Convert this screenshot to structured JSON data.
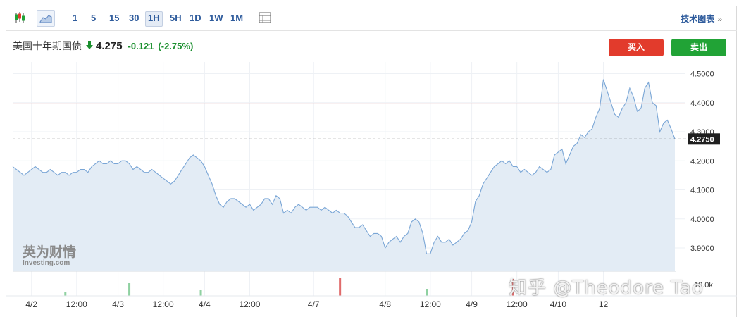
{
  "toolbar": {
    "icons": [
      "candlestick-icon",
      "area-chart-icon",
      "table-icon"
    ],
    "timeframes": [
      "1",
      "5",
      "15",
      "30",
      "1H",
      "5H",
      "1D",
      "1W",
      "1M"
    ],
    "active_timeframe": "1H",
    "advanced_chart_label": "技术图表",
    "advanced_chart_arrow": "»"
  },
  "quote": {
    "name": "美国十年期国债",
    "direction_icon": "down-arrow-icon",
    "price": "4.275",
    "change": "-0.121",
    "change_pct": "(-2.75%)",
    "down_color": "#1a8f2e"
  },
  "actions": {
    "buy_label": "买入",
    "sell_label": "卖出",
    "buy_color": "#e23b2c",
    "sell_color": "#21a336"
  },
  "branding": {
    "logo_cn": "英为财情",
    "logo_en": "Investing.com",
    "watermark": "知乎 @Theodore Tao"
  },
  "chart_data": {
    "type": "area",
    "ylim": [
      3.82,
      4.54
    ],
    "yticks": [
      "4.5000",
      "4.4000",
      "4.3000",
      "4.2000",
      "4.1000",
      "4.0000",
      "3.9000"
    ],
    "ytick_values": [
      4.5,
      4.4,
      4.3,
      4.2,
      4.1,
      4.0,
      3.9
    ],
    "current_value": 4.275,
    "current_label": "4.2750",
    "reference_line": 4.396,
    "x_labels": [
      {
        "label": "4/2",
        "index": 5
      },
      {
        "label": "12:00",
        "index": 17
      },
      {
        "label": "4/3",
        "index": 28
      },
      {
        "label": "12:00",
        "index": 40
      },
      {
        "label": "4/4",
        "index": 51
      },
      {
        "label": "12:00",
        "index": 63
      },
      {
        "label": "4/7",
        "index": 80
      },
      {
        "label": "4/8",
        "index": 99
      },
      {
        "label": "12:00",
        "index": 111
      },
      {
        "label": "4/9",
        "index": 122
      },
      {
        "label": "12:00",
        "index": 134
      },
      {
        "label": "4/10",
        "index": 145
      },
      {
        "label": "12",
        "index": 157
      }
    ],
    "volume_axis_label": "10.0k",
    "volume": [
      {
        "index": 14,
        "value": 0.5,
        "color": "#8fd1a1"
      },
      {
        "index": 31,
        "value": 1.8,
        "color": "#8fd1a1"
      },
      {
        "index": 50,
        "value": 0.9,
        "color": "#8fd1a1"
      },
      {
        "index": 87,
        "value": 2.6,
        "color": "#e06b6b"
      },
      {
        "index": 110,
        "value": 1.0,
        "color": "#8fd1a1"
      },
      {
        "index": 133,
        "value": 2.4,
        "color": "#e06b6b"
      }
    ],
    "values": [
      4.18,
      4.17,
      4.16,
      4.15,
      4.16,
      4.17,
      4.18,
      4.17,
      4.16,
      4.16,
      4.17,
      4.16,
      4.15,
      4.16,
      4.16,
      4.15,
      4.16,
      4.16,
      4.17,
      4.17,
      4.16,
      4.18,
      4.19,
      4.2,
      4.19,
      4.19,
      4.2,
      4.19,
      4.19,
      4.2,
      4.2,
      4.19,
      4.17,
      4.18,
      4.17,
      4.16,
      4.16,
      4.17,
      4.16,
      4.15,
      4.14,
      4.13,
      4.12,
      4.13,
      4.15,
      4.17,
      4.19,
      4.21,
      4.22,
      4.21,
      4.2,
      4.18,
      4.15,
      4.12,
      4.08,
      4.05,
      4.04,
      4.06,
      4.07,
      4.07,
      4.06,
      4.05,
      4.04,
      4.05,
      4.03,
      4.04,
      4.05,
      4.07,
      4.07,
      4.05,
      4.08,
      4.07,
      4.02,
      4.03,
      4.02,
      4.04,
      4.05,
      4.04,
      4.03,
      4.04,
      4.04,
      4.04,
      4.03,
      4.04,
      4.03,
      4.02,
      4.03,
      4.02,
      4.02,
      4.01,
      3.99,
      3.97,
      3.97,
      3.98,
      3.96,
      3.94,
      3.95,
      3.95,
      3.94,
      3.9,
      3.92,
      3.93,
      3.94,
      3.92,
      3.94,
      3.95,
      3.99,
      4.0,
      3.99,
      3.95,
      3.88,
      3.88,
      3.92,
      3.94,
      3.92,
      3.92,
      3.93,
      3.91,
      3.92,
      3.93,
      3.95,
      3.96,
      3.99,
      4.06,
      4.08,
      4.12,
      4.14,
      4.16,
      4.18,
      4.19,
      4.2,
      4.19,
      4.2,
      4.18,
      4.18,
      4.16,
      4.17,
      4.16,
      4.15,
      4.16,
      4.18,
      4.17,
      4.16,
      4.17,
      4.22,
      4.23,
      4.24,
      4.19,
      4.22,
      4.25,
      4.26,
      4.29,
      4.28,
      4.3,
      4.31,
      4.35,
      4.38,
      4.48,
      4.44,
      4.4,
      4.36,
      4.35,
      4.38,
      4.4,
      4.45,
      4.42,
      4.37,
      4.38,
      4.45,
      4.47,
      4.4,
      4.39,
      4.3,
      4.33,
      4.34,
      4.31,
      4.275
    ]
  }
}
